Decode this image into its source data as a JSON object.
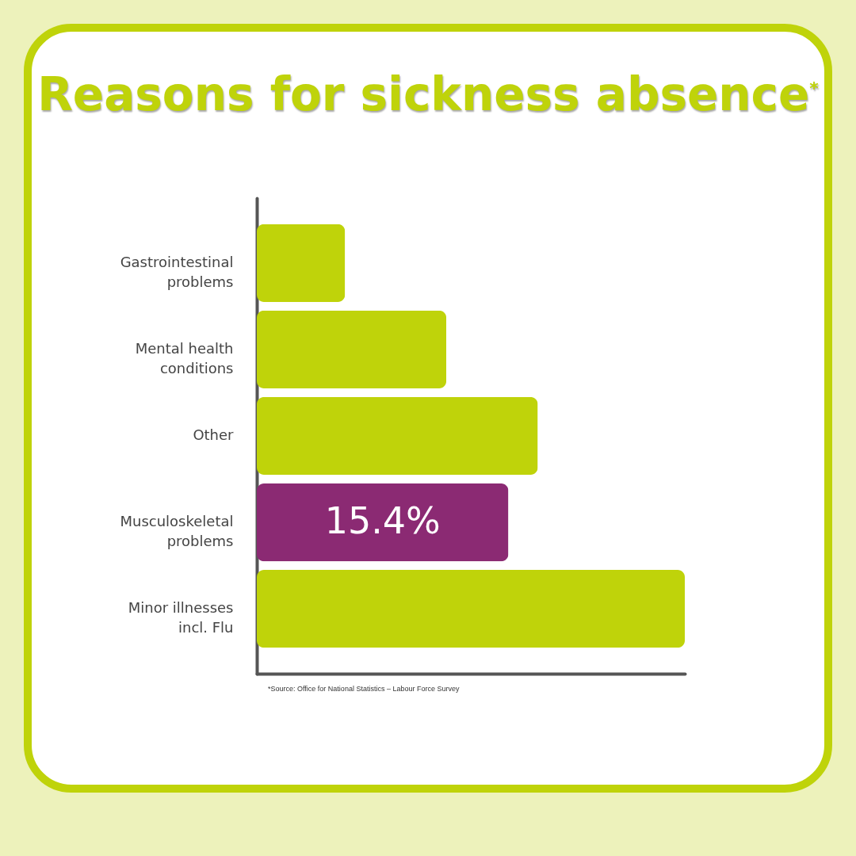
{
  "chart_data": {
    "type": "bar",
    "orientation": "horizontal",
    "tick_labels": "y",
    "title": "Reasons for sickness absence$^{*}$",
    "categories": [
      "Gastrointestinal problems",
      "Mental health conditions",
      "Other",
      "Musculoskeletal problems",
      "Minor illnesses incl. Flu"
    ],
    "values": [
      5.4,
      11.6,
      17.2,
      15.4,
      26.2
    ],
    "colors": [
      "#bfd30a",
      "#bfd30a",
      "#bfd30a",
      "#8b2a73",
      "#bfd30a"
    ],
    "value_labels": [
      null,
      null,
      null,
      "15.4%",
      null
    ],
    "annotations": [
      "*Source: Office for National Statistics – Labour Force Survey"
    ],
    "grid": false
  }
}
